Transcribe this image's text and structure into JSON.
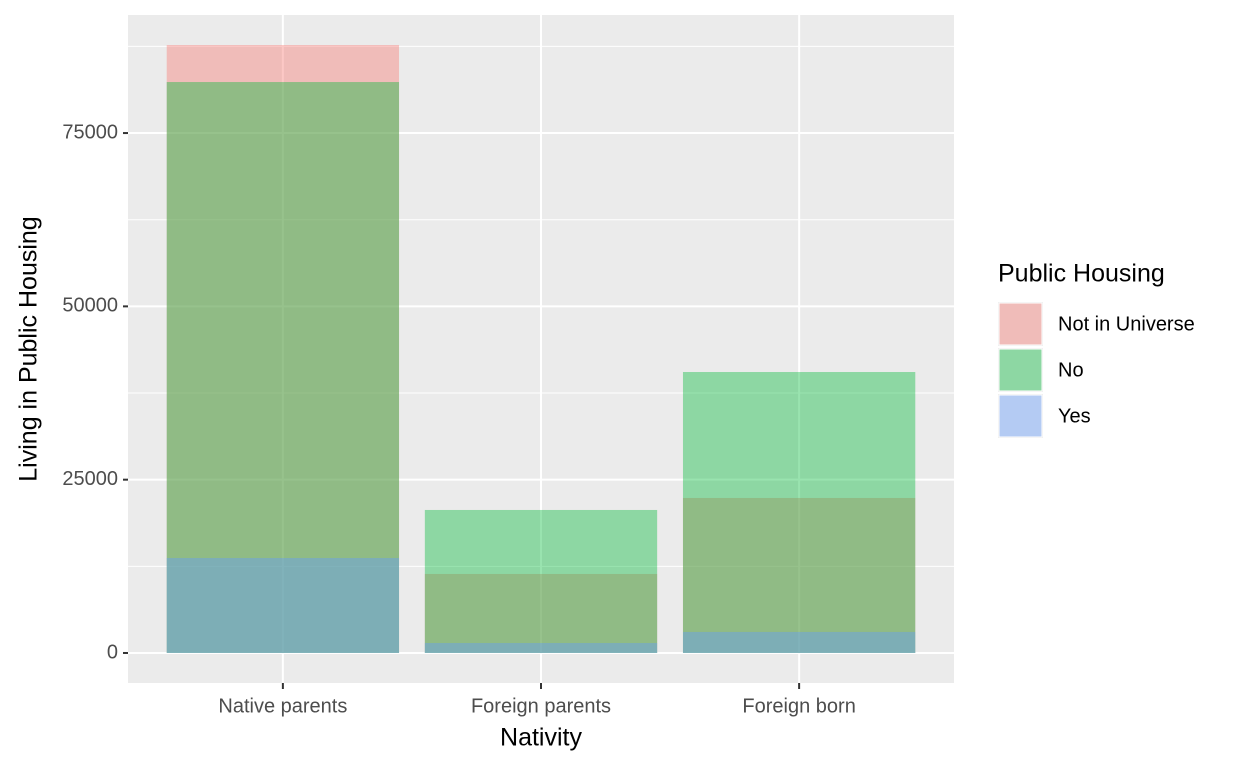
{
  "chart_data": {
    "type": "bar",
    "position": "identity",
    "opacity": 0.4,
    "x_label": "Nativity",
    "y_label": "Living in Public Housing",
    "legend_title": "Public Housing",
    "legend_position": "right",
    "categories": [
      "Native parents",
      "Foreign parents",
      "Foreign born"
    ],
    "series": [
      {
        "name": "Not in Universe",
        "color": "#F8766D",
        "values": [
          87700,
          11400,
          22360
        ]
      },
      {
        "name": "No",
        "color": "#00BA38",
        "values": [
          82360,
          20630,
          40530
        ]
      },
      {
        "name": "Yes",
        "color": "#619CFF",
        "values": [
          13700,
          1440,
          3030
        ]
      }
    ],
    "ylim": [
      -4330,
      92030
    ],
    "yticks": [
      0,
      25000,
      50000,
      75000
    ],
    "grid": true
  }
}
